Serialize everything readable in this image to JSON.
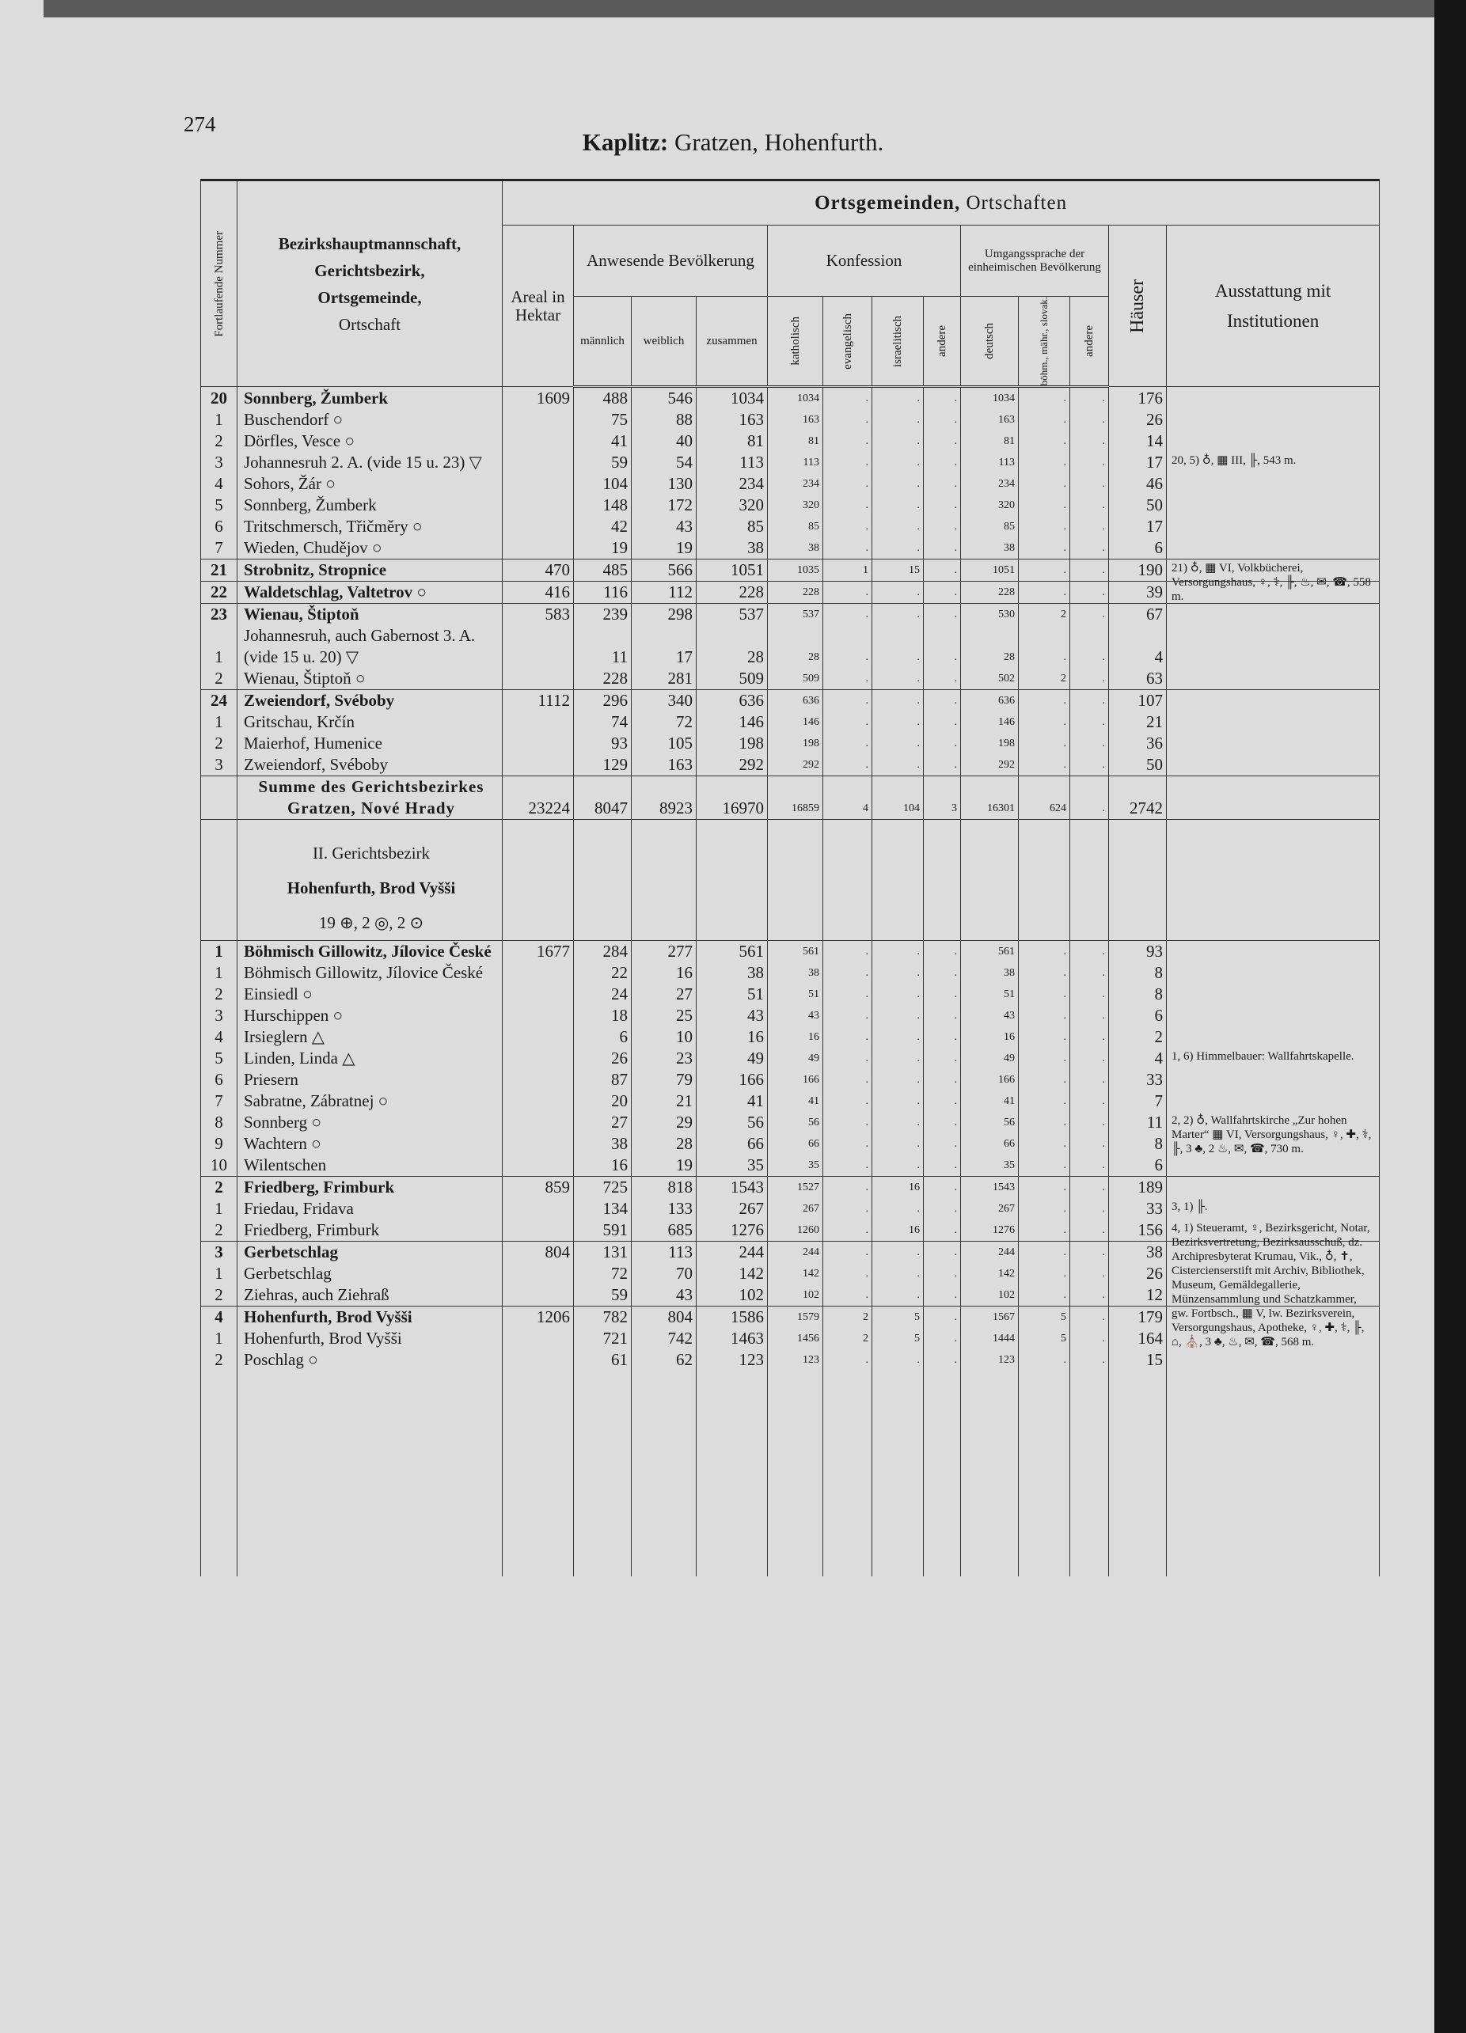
{
  "header": {
    "page_number": "274",
    "title_bold": "Kaplitz:",
    "title_rest": "Gratzen, Hohenfurth."
  },
  "columns": {
    "nr": "Fortlaufende Nummer",
    "name": [
      "Bezirkshauptmannschaft,",
      "Gerichtsbezirk,",
      "Ortsgemeinde,",
      "Ortschaft"
    ],
    "group_bold": "Ortsgemeinden,",
    "group_rest": "Ortschaften",
    "areal": "Areal in Hektar",
    "bev": "Anwesende Bevölkerung",
    "maenn": "männlich",
    "weib": "weiblich",
    "zus": "zusammen",
    "konf": "Konfession",
    "kath": "katholisch",
    "evang": "evangelisch",
    "isr": "israelitisch",
    "andere": "andere",
    "sprache": "Umgangssprache der einheimischen Bevölkerung",
    "deutsch": "deutsch",
    "boehm": "böhm., mähr., slovak.",
    "andere2": "andere",
    "haeuser": "Häuser",
    "ausst": "Ausstattung mit Institutionen"
  },
  "body": [
    {
      "cells": [
        "20",
        "Sonnberg, Žumberk",
        "1609",
        "488",
        "546",
        "1034",
        "1034",
        ".",
        ".",
        ".",
        "1034",
        ".",
        ".",
        "176",
        null
      ]
    },
    {
      "cells": [
        "1",
        "Buschendorf ○",
        null,
        "75",
        "88",
        "163",
        "163",
        ".",
        ".",
        ".",
        "163",
        ".",
        ".",
        "26",
        null
      ]
    },
    {
      "cells": [
        "2",
        "Dörfles, Vesce ○",
        null,
        "41",
        "40",
        "81",
        "81",
        ".",
        ".",
        ".",
        "81",
        ".",
        ".",
        "14",
        null
      ]
    },
    {
      "cells": [
        "3",
        "Johannesruh 2. A. (vide 15 u. 23) ▽",
        null,
        "59",
        "54",
        "113",
        "113",
        ".",
        ".",
        ".",
        "113",
        ".",
        ".",
        "17",
        "20, 5) ♁, ▦ III, ╟, 543 m."
      ]
    },
    {
      "cells": [
        "4",
        "Sohors, Žár ○",
        null,
        "104",
        "130",
        "234",
        "234",
        ".",
        ".",
        ".",
        "234",
        ".",
        ".",
        "46",
        null
      ]
    },
    {
      "cells": [
        "5",
        "Sonnberg, Žumberk",
        null,
        "148",
        "172",
        "320",
        "320",
        ".",
        ".",
        ".",
        "320",
        ".",
        ".",
        "50",
        null
      ]
    },
    {
      "cells": [
        "6",
        "Tritschmersch, Třičměry ○",
        null,
        "42",
        "43",
        "85",
        "85",
        ".",
        ".",
        ".",
        "85",
        ".",
        ".",
        "17",
        null
      ]
    },
    {
      "cells": [
        "7",
        "Wieden, Chudějov ○",
        null,
        "19",
        "19",
        "38",
        "38",
        ".",
        ".",
        ".",
        "38",
        ".",
        ".",
        "6",
        null
      ]
    },
    {
      "cells": [
        "21",
        "Strobnitz, Stropnice",
        "470",
        "485",
        "566",
        "1051",
        "1035",
        "1",
        "15",
        ".",
        "1051",
        ".",
        ".",
        "190",
        "21) ♁, ▦ VI, Volkbücherei, Versorgungshaus, ♀, ⚕, ╟, ♨, ✉, ☎, 558 m."
      ]
    },
    {
      "cells": [
        "22",
        "Waldetschlag, Valtetrov ○",
        "416",
        "116",
        "112",
        "228",
        "228",
        ".",
        ".",
        ".",
        "228",
        ".",
        ".",
        "39",
        null
      ]
    },
    {
      "cells": [
        "23",
        "Wienau, Štiptoň",
        "583",
        "239",
        "298",
        "537",
        "537",
        ".",
        ".",
        ".",
        "530",
        "2",
        ".",
        "67",
        null
      ]
    },
    {
      "cells": [
        "1",
        "Johannesruh, auch Gabernost 3. A. (vide 15 u. 20) ▽",
        null,
        "11",
        "17",
        "28",
        "28",
        ".",
        ".",
        ".",
        "28",
        ".",
        ".",
        "4",
        null
      ]
    },
    {
      "cells": [
        "2",
        "Wienau, Štiptoň ○",
        null,
        "228",
        "281",
        "509",
        "509",
        ".",
        ".",
        ".",
        "502",
        "2",
        ".",
        "63",
        null
      ]
    },
    {
      "cells": [
        "24",
        "Zweiendorf, Svéboby",
        "1112",
        "296",
        "340",
        "636",
        "636",
        ".",
        ".",
        ".",
        "636",
        ".",
        ".",
        "107",
        null
      ]
    },
    {
      "cells": [
        "1",
        "Gritschau, Krčín",
        null,
        "74",
        "72",
        "146",
        "146",
        ".",
        ".",
        ".",
        "146",
        ".",
        ".",
        "21",
        null
      ]
    },
    {
      "cells": [
        "2",
        "Maierhof, Humenice",
        null,
        "93",
        "105",
        "198",
        "198",
        ".",
        ".",
        ".",
        "198",
        ".",
        ".",
        "36",
        null
      ]
    },
    {
      "cells": [
        "3",
        "Zweiendorf, Svéboby",
        null,
        "129",
        "163",
        "292",
        "292",
        ".",
        ".",
        ".",
        "292",
        ".",
        ".",
        "50",
        null
      ]
    },
    {
      "cells": [
        null,
        "Summe des Gerichtsbezirkes Gratzen, Nové Hrady",
        "23224",
        "8047",
        "8923",
        "16970",
        "16859",
        "4",
        "104",
        "3",
        "16301",
        "624",
        ".",
        "2742",
        null
      ]
    },
    {
      "heading": [
        "II. Gerichtsbezirk",
        "Hohenfurth, Brod Vyšši",
        "19 ⊕, 2 ◎, 2 ⊙"
      ]
    },
    {
      "cells": [
        "1",
        "Böhmisch Gillowitz, Jílovice České",
        "1677",
        "284",
        "277",
        "561",
        "561",
        ".",
        ".",
        ".",
        "561",
        ".",
        ".",
        "93",
        null
      ]
    },
    {
      "cells": [
        "1",
        "Böhmisch Gillowitz, Jílovice České",
        null,
        "22",
        "16",
        "38",
        "38",
        ".",
        ".",
        ".",
        "38",
        ".",
        ".",
        "8",
        null
      ]
    },
    {
      "cells": [
        "2",
        "Einsiedl ○",
        null,
        "24",
        "27",
        "51",
        "51",
        ".",
        ".",
        ".",
        "51",
        ".",
        ".",
        "8",
        null
      ]
    },
    {
      "cells": [
        "3",
        "Hurschippen ○",
        null,
        "18",
        "25",
        "43",
        "43",
        ".",
        ".",
        ".",
        "43",
        ".",
        ".",
        "6",
        null
      ]
    },
    {
      "cells": [
        "4",
        "Irsieglern △",
        null,
        "6",
        "10",
        "16",
        "16",
        ".",
        ".",
        ".",
        "16",
        ".",
        ".",
        "2",
        null
      ]
    },
    {
      "cells": [
        "5",
        "Linden, Linda △",
        null,
        "26",
        "23",
        "49",
        "49",
        ".",
        ".",
        ".",
        "49",
        ".",
        ".",
        "4",
        "1, 6) Himmelbauer: Wallfahrtskapelle."
      ]
    },
    {
      "cells": [
        "6",
        "Priesern",
        null,
        "87",
        "79",
        "166",
        "166",
        ".",
        ".",
        ".",
        "166",
        ".",
        ".",
        "33",
        null
      ]
    },
    {
      "cells": [
        "7",
        "Sabratne, Zábratnej ○",
        null,
        "20",
        "21",
        "41",
        "41",
        ".",
        ".",
        ".",
        "41",
        ".",
        ".",
        "7",
        null
      ]
    },
    {
      "cells": [
        "8",
        "Sonnberg ○",
        null,
        "27",
        "29",
        "56",
        "56",
        ".",
        ".",
        ".",
        "56",
        ".",
        ".",
        "11",
        "2, 2) ♁, Wallfahrtskirche „Zur hohen Marter“ ▦ VI, Versorgungshaus, ♀, ✚, ⚕, ╟, 3 ♣, 2 ♨, ✉, ☎, 730 m."
      ]
    },
    {
      "cells": [
        "9",
        "Wachtern ○",
        null,
        "38",
        "28",
        "66",
        "66",
        ".",
        ".",
        ".",
        "66",
        ".",
        ".",
        "8",
        null
      ]
    },
    {
      "cells": [
        "10",
        "Wilentschen",
        null,
        "16",
        "19",
        "35",
        "35",
        ".",
        ".",
        ".",
        "35",
        ".",
        ".",
        "6",
        null
      ]
    },
    {
      "cells": [
        "2",
        "Friedberg, Frimburk",
        "859",
        "725",
        "818",
        "1543",
        "1527",
        ".",
        "16",
        ".",
        "1543",
        ".",
        ".",
        "189",
        null
      ]
    },
    {
      "cells": [
        "1",
        "Friedau, Fridava",
        null,
        "134",
        "133",
        "267",
        "267",
        ".",
        ".",
        ".",
        "267",
        ".",
        ".",
        "33",
        "3, 1) ╟."
      ]
    },
    {
      "cells": [
        "2",
        "Friedberg, Frimburk",
        null,
        "591",
        "685",
        "1276",
        "1260",
        ".",
        "16",
        ".",
        "1276",
        ".",
        ".",
        "156",
        "4, 1) Steueramt, ♀, Bezirksgericht, Notar, Bezirksvertretung, Bezirksausschuß, dz. Archipresbyterat Krumau, Vik., ♁, ✝, Cistercienserstift mit Archiv, Bibliothek, Museum, Gemäldegallerie, Münzensammlung und Schatzkammer, gw. Fortbsch., ▦ V, lw. Bezirksverein, Versorgungshaus, Apotheke, ♀, ✚, ⚕, ╟, ⌂, ⛪, 3 ♣, ♨, ✉, ☎, 568 m."
      ]
    },
    {
      "cells": [
        "3",
        "Gerbetschlag",
        "804",
        "131",
        "113",
        "244",
        "244",
        ".",
        ".",
        ".",
        "244",
        ".",
        ".",
        "38",
        null
      ]
    },
    {
      "cells": [
        "1",
        "Gerbetschlag",
        null,
        "72",
        "70",
        "142",
        "142",
        ".",
        ".",
        ".",
        "142",
        ".",
        ".",
        "26",
        null
      ]
    },
    {
      "cells": [
        "2",
        "Ziehras, auch Ziehraß",
        null,
        "59",
        "43",
        "102",
        "102",
        ".",
        ".",
        ".",
        "102",
        ".",
        ".",
        "12",
        null
      ]
    },
    {
      "cells": [
        "4",
        "Hohenfurth, Brod Vyšši",
        "1206",
        "782",
        "804",
        "1586",
        "1579",
        "2",
        "5",
        ".",
        "1567",
        "5",
        ".",
        "179",
        null
      ]
    },
    {
      "cells": [
        "1",
        "Hohenfurth, Brod Vyšši",
        null,
        "721",
        "742",
        "1463",
        "1456",
        "2",
        "5",
        ".",
        "1444",
        "5",
        ".",
        "164",
        null
      ]
    },
    {
      "cells": [
        "2",
        "Poschlag ○",
        null,
        "61",
        "62",
        "123",
        "123",
        ".",
        ".",
        ".",
        "123",
        ".",
        ".",
        "15",
        null
      ]
    }
  ]
}
